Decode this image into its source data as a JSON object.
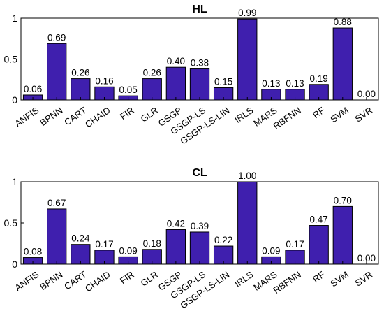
{
  "chart_data": [
    {
      "type": "bar",
      "title": "HL",
      "categories": [
        "ANFIS",
        "BPNN",
        "CART",
        "CHAID",
        "FIR",
        "GLR",
        "GSGP",
        "GSGP-LS",
        "GSGP-LS-LIN",
        "IRLS",
        "MARS",
        "RBFNN",
        "RF",
        "SVM",
        "SVR"
      ],
      "values": [
        0.06,
        0.69,
        0.26,
        0.16,
        0.05,
        0.26,
        0.4,
        0.38,
        0.15,
        0.99,
        0.13,
        0.13,
        0.19,
        0.88,
        0.0
      ],
      "value_labels": [
        "0.06",
        "0.69",
        "0.26",
        "0.16",
        "0.05",
        "0.26",
        "0.40",
        "0.38",
        "0.15",
        "0.99",
        "0.13",
        "0.13",
        "0.19",
        "0.88",
        "0.00"
      ],
      "ylim": [
        0,
        1
      ],
      "yticks": [
        "0",
        "0.5",
        "1"
      ],
      "bar_color": "#3f1fae",
      "xlabel": "",
      "ylabel": "",
      "grid": false
    },
    {
      "type": "bar",
      "title": "CL",
      "categories": [
        "ANFIS",
        "BPNN",
        "CART",
        "CHAID",
        "FIR",
        "GLR",
        "GSGP",
        "GSGP-LS",
        "GSGP-LS-LIN",
        "IRLS",
        "MARS",
        "RBFNN",
        "RF",
        "SVM",
        "SVR"
      ],
      "values": [
        0.08,
        0.67,
        0.24,
        0.17,
        0.09,
        0.18,
        0.42,
        0.39,
        0.22,
        1.0,
        0.09,
        0.17,
        0.47,
        0.7,
        0.0
      ],
      "value_labels": [
        "0.08",
        "0.67",
        "0.24",
        "0.17",
        "0.09",
        "0.18",
        "0.42",
        "0.39",
        "0.22",
        "1.00",
        "0.09",
        "0.17",
        "0.47",
        "0.70",
        "0.00"
      ],
      "ylim": [
        0,
        1
      ],
      "yticks": [
        "0",
        "0.5",
        "1"
      ],
      "bar_color": "#3f1fae",
      "xlabel": "",
      "ylabel": "",
      "grid": false
    }
  ]
}
